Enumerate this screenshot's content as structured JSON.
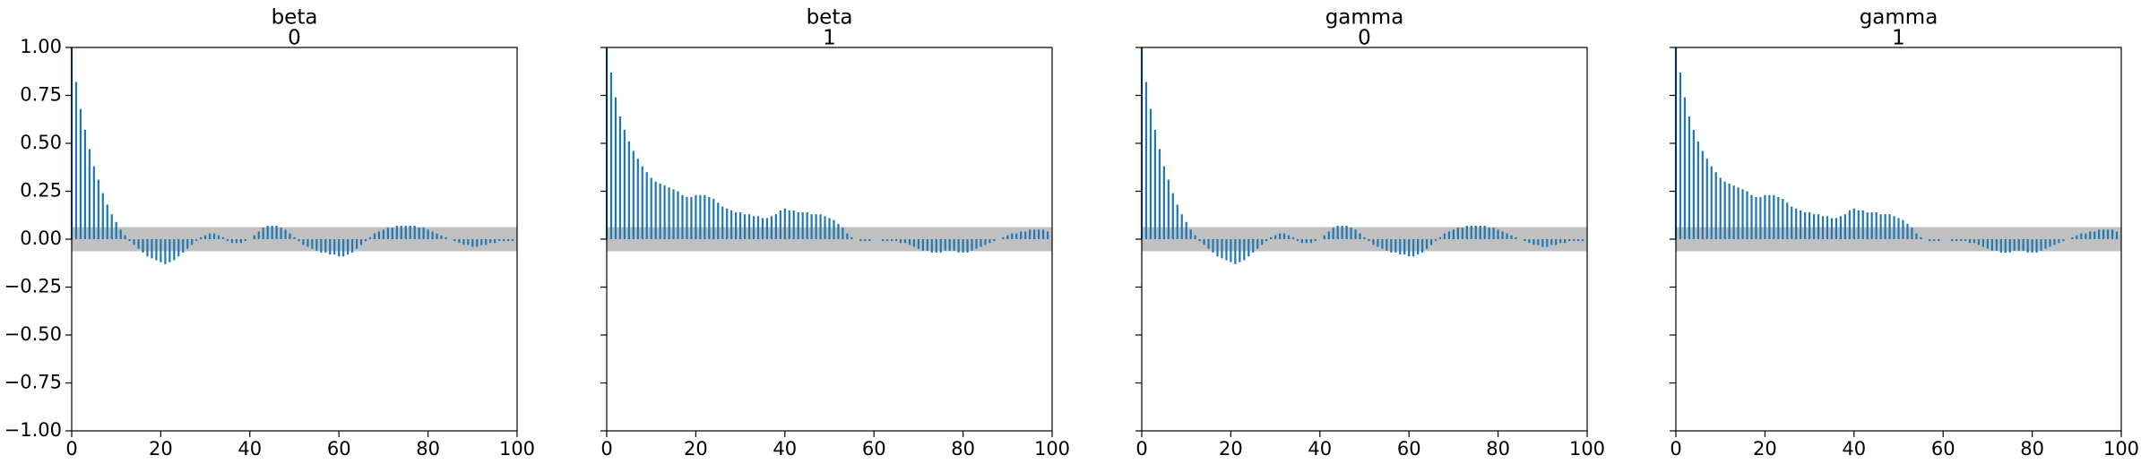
{
  "chart_data": [
    {
      "type": "bar",
      "title": "beta",
      "subtitle": "0",
      "color": "#1f77b4",
      "band": [
        -0.063,
        0.063
      ],
      "band_color": "#c0c0c0",
      "x": [
        0,
        1,
        2,
        3,
        4,
        5,
        6,
        7,
        8,
        9,
        10,
        11,
        12,
        13,
        14,
        15,
        16,
        17,
        18,
        19,
        20,
        21,
        22,
        23,
        24,
        25,
        26,
        27,
        28,
        29,
        30,
        31,
        32,
        33,
        34,
        35,
        36,
        37,
        38,
        39,
        40,
        41,
        42,
        43,
        44,
        45,
        46,
        47,
        48,
        49,
        50,
        51,
        52,
        53,
        54,
        55,
        56,
        57,
        58,
        59,
        60,
        61,
        62,
        63,
        64,
        65,
        66,
        67,
        68,
        69,
        70,
        71,
        72,
        73,
        74,
        75,
        76,
        77,
        78,
        79,
        80,
        81,
        82,
        83,
        84,
        85,
        86,
        87,
        88,
        89,
        90,
        91,
        92,
        93,
        94,
        95,
        96,
        97,
        98,
        99
      ],
      "values": [
        1.0,
        0.82,
        0.68,
        0.57,
        0.47,
        0.38,
        0.31,
        0.24,
        0.18,
        0.13,
        0.09,
        0.05,
        0.02,
        -0.01,
        -0.03,
        -0.05,
        -0.07,
        -0.09,
        -0.1,
        -0.11,
        -0.12,
        -0.13,
        -0.12,
        -0.11,
        -0.09,
        -0.07,
        -0.05,
        -0.03,
        -0.01,
        0.01,
        0.02,
        0.03,
        0.03,
        0.02,
        0.01,
        -0.01,
        -0.02,
        -0.02,
        -0.02,
        -0.01,
        0.0,
        0.02,
        0.04,
        0.06,
        0.07,
        0.07,
        0.07,
        0.06,
        0.05,
        0.03,
        0.01,
        -0.01,
        -0.03,
        -0.04,
        -0.05,
        -0.06,
        -0.07,
        -0.07,
        -0.08,
        -0.08,
        -0.09,
        -0.09,
        -0.08,
        -0.07,
        -0.05,
        -0.03,
        -0.01,
        0.01,
        0.03,
        0.04,
        0.05,
        0.06,
        0.06,
        0.07,
        0.07,
        0.07,
        0.07,
        0.07,
        0.06,
        0.06,
        0.05,
        0.04,
        0.03,
        0.02,
        0.01,
        0.0,
        -0.01,
        -0.02,
        -0.03,
        -0.03,
        -0.04,
        -0.04,
        -0.03,
        -0.03,
        -0.02,
        -0.02,
        -0.01,
        -0.01,
        -0.01,
        -0.01
      ],
      "xlim": [
        0,
        100
      ],
      "ylim": [
        -1,
        1
      ],
      "xticks": [
        0,
        20,
        40,
        60,
        80,
        100
      ],
      "yticks": [
        {
          "value": -1,
          "label": "−1.00"
        },
        {
          "value": -0.75,
          "label": "−0.75"
        },
        {
          "value": -0.5,
          "label": "−0.50"
        },
        {
          "value": -0.25,
          "label": "−0.25"
        },
        {
          "value": 0,
          "label": "0.00"
        },
        {
          "value": 0.25,
          "label": "0.25"
        },
        {
          "value": 0.5,
          "label": "0.50"
        },
        {
          "value": 0.75,
          "label": "0.75"
        },
        {
          "value": 1,
          "label": "1.00"
        }
      ]
    },
    {
      "type": "bar",
      "title": "beta",
      "subtitle": "1",
      "color": "#1f77b4",
      "band": [
        -0.063,
        0.063
      ],
      "band_color": "#c0c0c0",
      "x": [
        0,
        1,
        2,
        3,
        4,
        5,
        6,
        7,
        8,
        9,
        10,
        11,
        12,
        13,
        14,
        15,
        16,
        17,
        18,
        19,
        20,
        21,
        22,
        23,
        24,
        25,
        26,
        27,
        28,
        29,
        30,
        31,
        32,
        33,
        34,
        35,
        36,
        37,
        38,
        39,
        40,
        41,
        42,
        43,
        44,
        45,
        46,
        47,
        48,
        49,
        50,
        51,
        52,
        53,
        54,
        55,
        56,
        57,
        58,
        59,
        60,
        61,
        62,
        63,
        64,
        65,
        66,
        67,
        68,
        69,
        70,
        71,
        72,
        73,
        74,
        75,
        76,
        77,
        78,
        79,
        80,
        81,
        82,
        83,
        84,
        85,
        86,
        87,
        88,
        89,
        90,
        91,
        92,
        93,
        94,
        95,
        96,
        97,
        98,
        99
      ],
      "values": [
        1.0,
        0.87,
        0.74,
        0.64,
        0.57,
        0.51,
        0.46,
        0.42,
        0.38,
        0.35,
        0.32,
        0.3,
        0.29,
        0.28,
        0.27,
        0.26,
        0.25,
        0.23,
        0.22,
        0.22,
        0.23,
        0.23,
        0.23,
        0.22,
        0.21,
        0.19,
        0.17,
        0.16,
        0.15,
        0.14,
        0.14,
        0.13,
        0.13,
        0.12,
        0.12,
        0.11,
        0.11,
        0.12,
        0.13,
        0.15,
        0.16,
        0.15,
        0.15,
        0.14,
        0.14,
        0.14,
        0.13,
        0.13,
        0.13,
        0.12,
        0.11,
        0.1,
        0.08,
        0.06,
        0.03,
        0.01,
        0.0,
        -0.01,
        -0.01,
        -0.01,
        0.0,
        0.0,
        -0.01,
        -0.01,
        -0.01,
        -0.01,
        -0.02,
        -0.02,
        -0.03,
        -0.04,
        -0.05,
        -0.06,
        -0.06,
        -0.07,
        -0.07,
        -0.07,
        -0.06,
        -0.06,
        -0.06,
        -0.07,
        -0.07,
        -0.07,
        -0.06,
        -0.05,
        -0.04,
        -0.03,
        -0.02,
        -0.01,
        0.0,
        0.01,
        0.02,
        0.03,
        0.03,
        0.04,
        0.04,
        0.05,
        0.05,
        0.05,
        0.05,
        0.04
      ],
      "xlim": [
        0,
        100
      ],
      "ylim": [
        -1,
        1
      ],
      "xticks": [
        0,
        20,
        40,
        60,
        80,
        100
      ],
      "yticks": [
        -1,
        -0.75,
        -0.5,
        -0.25,
        0,
        0.25,
        0.5,
        0.75,
        1
      ]
    },
    {
      "type": "bar",
      "title": "gamma",
      "subtitle": "0",
      "color": "#1f77b4",
      "band": [
        -0.063,
        0.063
      ],
      "band_color": "#c0c0c0",
      "x": [
        0,
        1,
        2,
        3,
        4,
        5,
        6,
        7,
        8,
        9,
        10,
        11,
        12,
        13,
        14,
        15,
        16,
        17,
        18,
        19,
        20,
        21,
        22,
        23,
        24,
        25,
        26,
        27,
        28,
        29,
        30,
        31,
        32,
        33,
        34,
        35,
        36,
        37,
        38,
        39,
        40,
        41,
        42,
        43,
        44,
        45,
        46,
        47,
        48,
        49,
        50,
        51,
        52,
        53,
        54,
        55,
        56,
        57,
        58,
        59,
        60,
        61,
        62,
        63,
        64,
        65,
        66,
        67,
        68,
        69,
        70,
        71,
        72,
        73,
        74,
        75,
        76,
        77,
        78,
        79,
        80,
        81,
        82,
        83,
        84,
        85,
        86,
        87,
        88,
        89,
        90,
        91,
        92,
        93,
        94,
        95,
        96,
        97,
        98,
        99
      ],
      "values": [
        1.0,
        0.82,
        0.68,
        0.57,
        0.47,
        0.38,
        0.31,
        0.24,
        0.18,
        0.13,
        0.09,
        0.05,
        0.02,
        -0.01,
        -0.03,
        -0.05,
        -0.07,
        -0.09,
        -0.1,
        -0.11,
        -0.12,
        -0.13,
        -0.12,
        -0.11,
        -0.09,
        -0.07,
        -0.05,
        -0.03,
        -0.01,
        0.01,
        0.02,
        0.03,
        0.03,
        0.02,
        0.01,
        -0.01,
        -0.02,
        -0.02,
        -0.02,
        -0.01,
        0.0,
        0.02,
        0.04,
        0.06,
        0.07,
        0.07,
        0.07,
        0.06,
        0.05,
        0.03,
        0.01,
        -0.01,
        -0.03,
        -0.04,
        -0.05,
        -0.06,
        -0.07,
        -0.07,
        -0.08,
        -0.08,
        -0.09,
        -0.09,
        -0.08,
        -0.07,
        -0.05,
        -0.03,
        -0.01,
        0.01,
        0.03,
        0.04,
        0.05,
        0.06,
        0.06,
        0.07,
        0.07,
        0.07,
        0.07,
        0.07,
        0.06,
        0.06,
        0.05,
        0.04,
        0.03,
        0.02,
        0.01,
        0.0,
        -0.01,
        -0.02,
        -0.03,
        -0.03,
        -0.04,
        -0.04,
        -0.03,
        -0.03,
        -0.02,
        -0.02,
        -0.01,
        -0.01,
        -0.01,
        -0.01
      ],
      "xlim": [
        0,
        100
      ],
      "ylim": [
        -1,
        1
      ],
      "xticks": [
        0,
        20,
        40,
        60,
        80,
        100
      ],
      "yticks": [
        -1,
        -0.75,
        -0.5,
        -0.25,
        0,
        0.25,
        0.5,
        0.75,
        1
      ]
    },
    {
      "type": "bar",
      "title": "gamma",
      "subtitle": "1",
      "color": "#1f77b4",
      "band": [
        -0.063,
        0.063
      ],
      "band_color": "#c0c0c0",
      "x": [
        0,
        1,
        2,
        3,
        4,
        5,
        6,
        7,
        8,
        9,
        10,
        11,
        12,
        13,
        14,
        15,
        16,
        17,
        18,
        19,
        20,
        21,
        22,
        23,
        24,
        25,
        26,
        27,
        28,
        29,
        30,
        31,
        32,
        33,
        34,
        35,
        36,
        37,
        38,
        39,
        40,
        41,
        42,
        43,
        44,
        45,
        46,
        47,
        48,
        49,
        50,
        51,
        52,
        53,
        54,
        55,
        56,
        57,
        58,
        59,
        60,
        61,
        62,
        63,
        64,
        65,
        66,
        67,
        68,
        69,
        70,
        71,
        72,
        73,
        74,
        75,
        76,
        77,
        78,
        79,
        80,
        81,
        82,
        83,
        84,
        85,
        86,
        87,
        88,
        89,
        90,
        91,
        92,
        93,
        94,
        95,
        96,
        97,
        98,
        99
      ],
      "values": [
        1.0,
        0.87,
        0.74,
        0.64,
        0.57,
        0.51,
        0.46,
        0.42,
        0.38,
        0.35,
        0.32,
        0.3,
        0.29,
        0.28,
        0.27,
        0.26,
        0.25,
        0.23,
        0.22,
        0.22,
        0.23,
        0.23,
        0.23,
        0.22,
        0.21,
        0.19,
        0.17,
        0.16,
        0.15,
        0.14,
        0.14,
        0.13,
        0.13,
        0.12,
        0.12,
        0.11,
        0.11,
        0.12,
        0.13,
        0.15,
        0.16,
        0.15,
        0.15,
        0.14,
        0.14,
        0.14,
        0.13,
        0.13,
        0.13,
        0.12,
        0.11,
        0.1,
        0.08,
        0.06,
        0.03,
        0.01,
        0.0,
        -0.01,
        -0.01,
        -0.01,
        0.0,
        0.0,
        -0.01,
        -0.01,
        -0.01,
        -0.01,
        -0.02,
        -0.02,
        -0.03,
        -0.04,
        -0.05,
        -0.06,
        -0.06,
        -0.07,
        -0.07,
        -0.07,
        -0.06,
        -0.06,
        -0.06,
        -0.07,
        -0.07,
        -0.07,
        -0.06,
        -0.05,
        -0.04,
        -0.03,
        -0.02,
        -0.01,
        0.0,
        0.01,
        0.02,
        0.03,
        0.03,
        0.04,
        0.04,
        0.05,
        0.05,
        0.05,
        0.05,
        0.04
      ],
      "xlim": [
        0,
        100
      ],
      "ylim": [
        -1,
        1
      ],
      "xticks": [
        0,
        20,
        40,
        60,
        80,
        100
      ],
      "yticks": [
        -1,
        -0.75,
        -0.5,
        -0.25,
        0,
        0.25,
        0.5,
        0.75,
        1
      ]
    }
  ]
}
